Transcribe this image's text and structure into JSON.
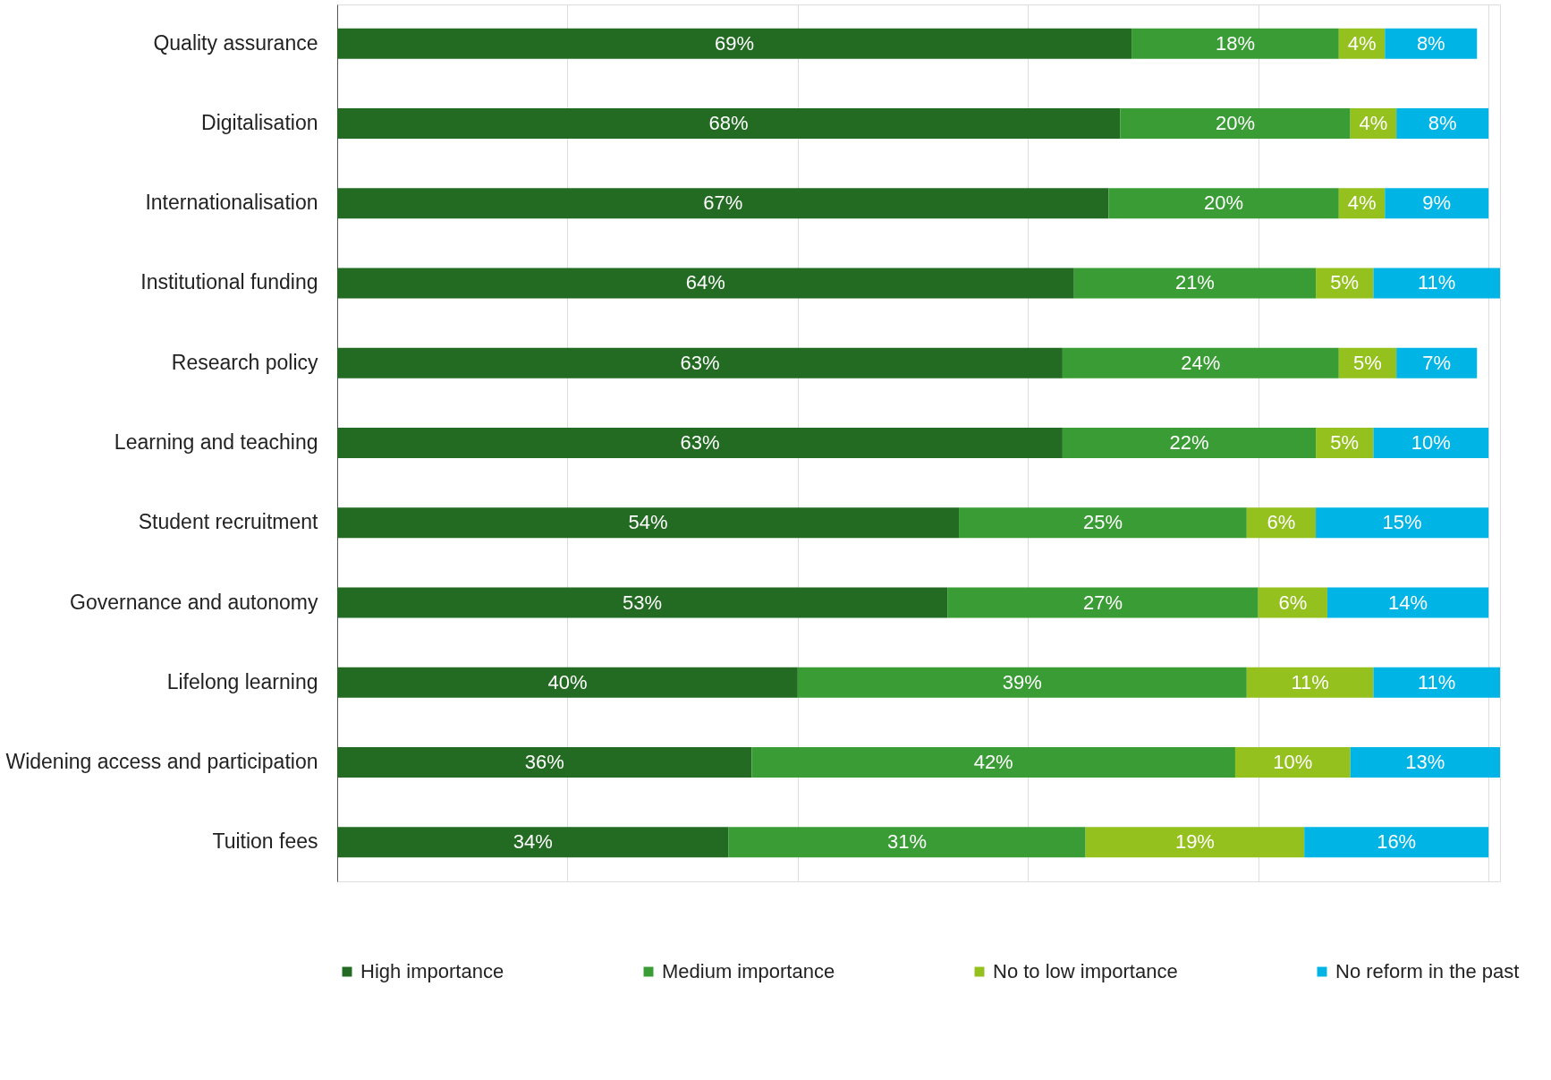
{
  "chart_data": {
    "type": "bar",
    "orientation": "horizontal",
    "stacked": true,
    "grid": "x",
    "legend": "bottom",
    "tick_labels": "y",
    "categories": [
      "Quality assurance",
      "Digitalisation",
      "Internationalisation",
      "Institutional funding",
      "Research policy",
      "Learning and teaching",
      "Student recruitment",
      "Governance and autonomy",
      "Lifelong learning",
      "Widening access and participation",
      "Tuition fees"
    ],
    "series": [
      {
        "name": "High importance",
        "color": "#236b23",
        "values": [
          69,
          68,
          67,
          64,
          63,
          63,
          54,
          53,
          40,
          36,
          34
        ],
        "value_labels": [
          "69%",
          "68%",
          "67%",
          "64%",
          "63%",
          "63%",
          "54%",
          "53%",
          "40%",
          "36%",
          "34%"
        ]
      },
      {
        "name": "Medium importance",
        "color": "#3a9c35",
        "values": [
          18,
          20,
          20,
          21,
          24,
          22,
          25,
          27,
          39,
          42,
          31
        ],
        "value_labels": [
          "18%",
          "20%",
          "20%",
          "21%",
          "24%",
          "22%",
          "25%",
          "27%",
          "39%",
          "42%",
          "31%"
        ]
      },
      {
        "name": "No to low importance",
        "color": "#95c11f",
        "values": [
          4,
          4,
          4,
          5,
          5,
          5,
          6,
          6,
          11,
          10,
          19
        ],
        "value_labels": [
          "4%",
          "4%",
          "4%",
          "5%",
          "5%",
          "5%",
          "6%",
          "6%",
          "11%",
          "10%",
          "19%"
        ]
      },
      {
        "name": "No reform in the past",
        "color": "#00b4e6",
        "values": [
          8,
          8,
          9,
          11,
          7,
          10,
          15,
          14,
          11,
          13,
          16
        ],
        "value_labels": [
          "8%",
          "8%",
          "9%",
          "11%",
          "7%",
          "10%",
          "15%",
          "14%",
          "11%",
          "13%",
          "16%"
        ]
      }
    ]
  }
}
